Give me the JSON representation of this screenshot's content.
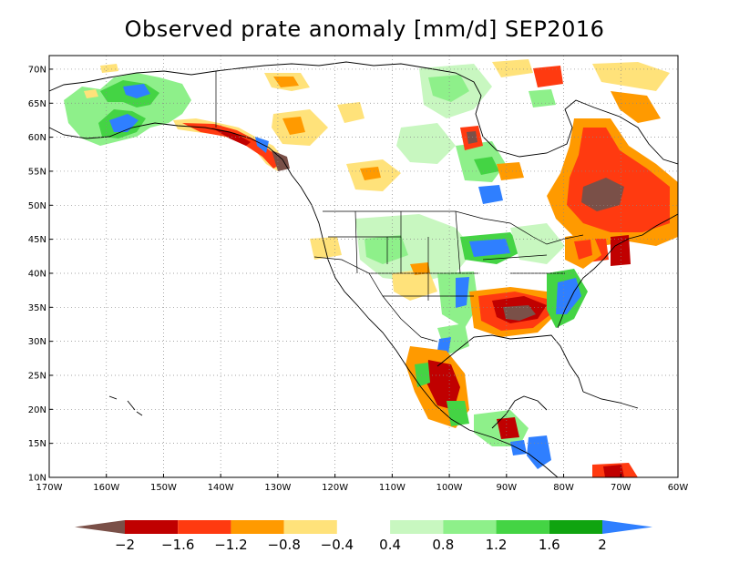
{
  "title": "Observed prate anomaly [mm/d] SEP2016",
  "map": {
    "lat_labels": [
      "70N",
      "65N",
      "60N",
      "55N",
      "50N",
      "45N",
      "40N",
      "35N",
      "30N",
      "25N",
      "20N",
      "15N",
      "10N"
    ],
    "lon_labels": [
      "170W",
      "160W",
      "150W",
      "140W",
      "130W",
      "120W",
      "110W",
      "100W",
      "90W",
      "80W",
      "70W",
      "60W"
    ],
    "lat_range": [
      10,
      72
    ],
    "lon_range": [
      -170,
      -60
    ],
    "grid": "dotted"
  },
  "colorbar": {
    "tick_labels": [
      "-2",
      "-1.6",
      "-1.2",
      "-0.8",
      "-0.4",
      "0.4",
      "0.8",
      "1.2",
      "1.6",
      "2"
    ],
    "colors": [
      "#7a5048",
      "#c00000",
      "#ff3a10",
      "#ff9a00",
      "#ffe27a",
      "#ffffff",
      "#c8f7c0",
      "#8ef08a",
      "#44d444",
      "#10a410",
      "#2f7fff"
    ]
  }
}
